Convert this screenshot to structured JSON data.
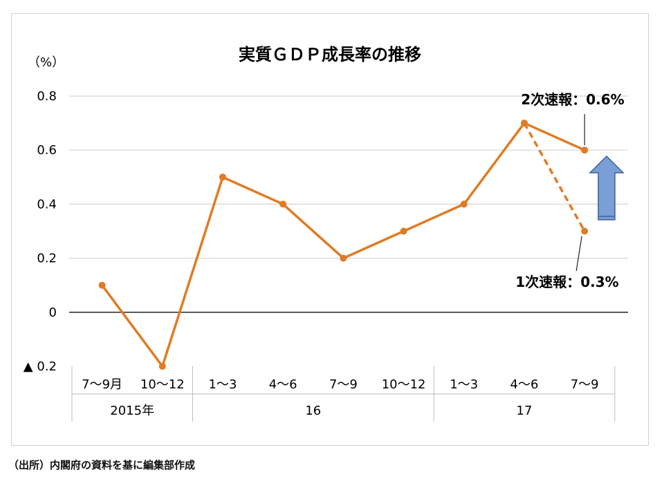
{
  "chart_data": {
    "type": "line",
    "title": "実質ＧＤＰ成長率の推移",
    "ylabel": "（%）",
    "ylim": [
      -0.2,
      0.8
    ],
    "yticks": [
      {
        "value": 0.8,
        "label": "0.8"
      },
      {
        "value": 0.6,
        "label": "0.6"
      },
      {
        "value": 0.4,
        "label": "0.4"
      },
      {
        "value": 0.2,
        "label": "0.2"
      },
      {
        "value": 0,
        "label": "0"
      },
      {
        "value": -0.2,
        "label": "▲ 0.2"
      }
    ],
    "categories": [
      "7～9月",
      "10～12",
      "1～3",
      "4～6",
      "7～9",
      "10～12",
      "1～3",
      "4～6",
      "7～9"
    ],
    "year_groups": [
      {
        "label": "2015年",
        "start": 0,
        "end": 1
      },
      {
        "label": "16",
        "start": 2,
        "end": 5
      },
      {
        "label": "17",
        "start": 6,
        "end": 8
      }
    ],
    "series": [
      {
        "values": [
          0.1,
          -0.2,
          0.5,
          0.4,
          0.2,
          0.3,
          0.4,
          0.7,
          0.6
        ],
        "style": "solid",
        "color": "#e07b24"
      },
      {
        "values": [
          null,
          null,
          null,
          null,
          null,
          null,
          null,
          0.7,
          0.3
        ],
        "style": "dashed",
        "color": "#e07b24"
      }
    ],
    "annotations": [
      {
        "text": "2次速報：0.6%",
        "point_index": 8,
        "value": 0.6
      },
      {
        "text": "1次速報：0.3%",
        "point_index": 8,
        "value": 0.3
      }
    ],
    "arrow": {
      "direction": "up",
      "color": "#7a9fd6"
    },
    "grid": true
  },
  "source_note": "（出所）内閣府の資料を基に編集部作成"
}
